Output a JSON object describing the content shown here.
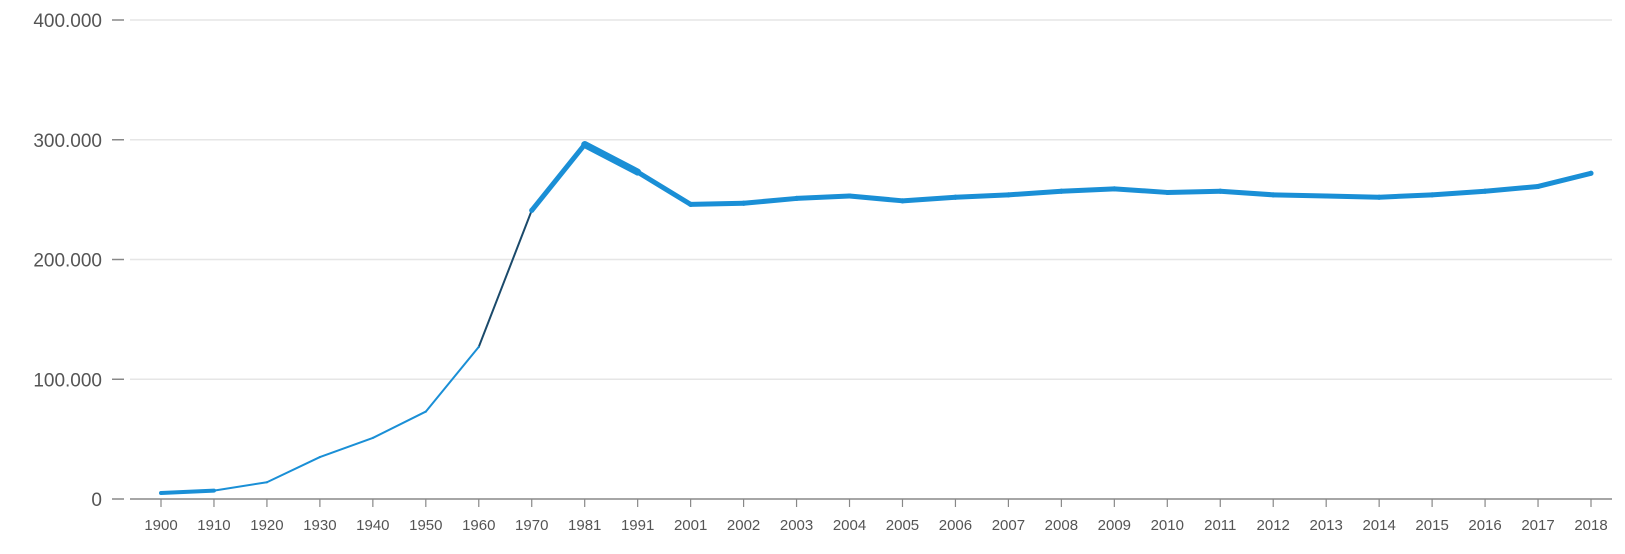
{
  "chart_data": {
    "type": "line",
    "title": "",
    "xlabel": "",
    "ylabel": "",
    "ylim": [
      0,
      400000
    ],
    "y_ticks": [
      {
        "value": 0,
        "label": "0"
      },
      {
        "value": 100000,
        "label": "100.000"
      },
      {
        "value": 200000,
        "label": "200.000"
      },
      {
        "value": 300000,
        "label": "300.000"
      },
      {
        "value": 400000,
        "label": "400.000"
      }
    ],
    "categories": [
      "1900",
      "1910",
      "1920",
      "1930",
      "1940",
      "1950",
      "1960",
      "1970",
      "1981",
      "1991",
      "2001",
      "2002",
      "2003",
      "2004",
      "2005",
      "2006",
      "2007",
      "2008",
      "2009",
      "2010",
      "2011",
      "2012",
      "2013",
      "2014",
      "2015",
      "2016",
      "2017",
      "2018"
    ],
    "series": [
      {
        "values": [
          5000,
          7000,
          14000,
          35000,
          51000,
          73000,
          127000,
          241000,
          296000,
          273000,
          246000,
          247000,
          251000,
          253000,
          249000,
          252000,
          254000,
          257000,
          259000,
          256000,
          257000,
          254000,
          253000,
          252000,
          254000,
          257000,
          261000,
          272000
        ]
      }
    ],
    "grid": true,
    "legend": "none",
    "colors": {
      "line": "#1a8fd6",
      "line_dark": "#1b4a6b",
      "grid": "#e6e6e6",
      "axis": "#888888",
      "tick_text": "#555555"
    }
  }
}
